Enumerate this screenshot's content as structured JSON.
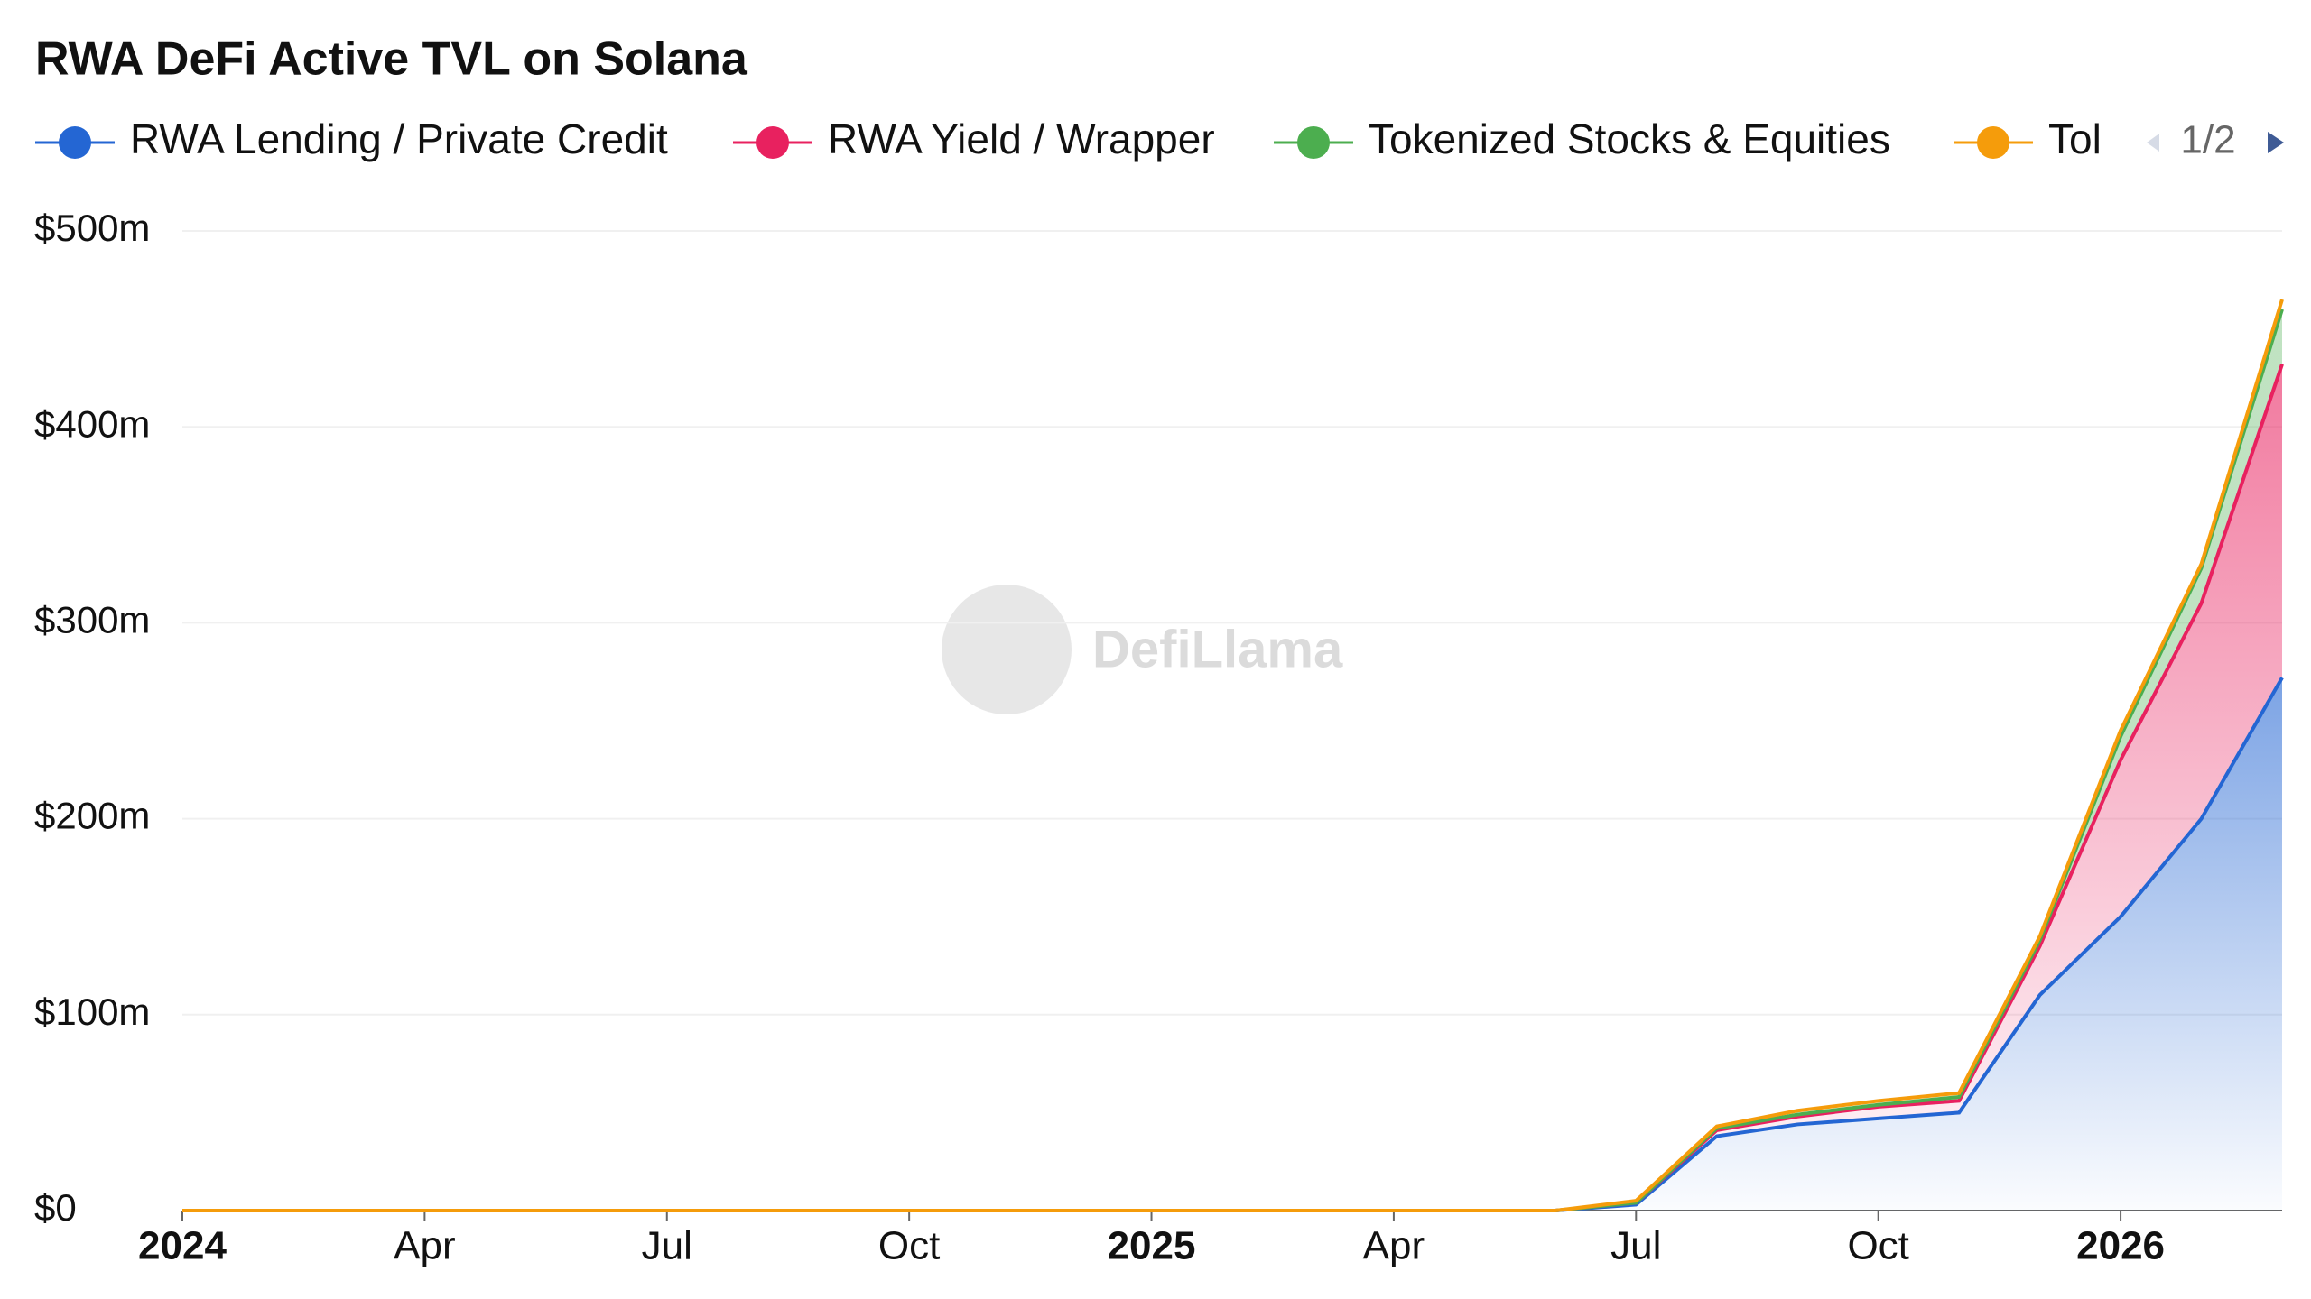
{
  "chart_data": {
    "type": "stacked-area",
    "title": "RWA DeFi Active TVL on Solana",
    "watermark": "DefiLlama",
    "legend_page": "1/2",
    "x": [
      "2024-01",
      "2024-02",
      "2024-03",
      "2024-04",
      "2024-05",
      "2024-06",
      "2024-07",
      "2024-08",
      "2024-09",
      "2024-10",
      "2024-11",
      "2024-12",
      "2025-01",
      "2025-02",
      "2025-03",
      "2025-04",
      "2025-05",
      "2025-06",
      "2025-07",
      "2025-08",
      "2025-09",
      "2025-10",
      "2025-11",
      "2025-12",
      "2026-01",
      "2026-02",
      "2026-03"
    ],
    "series": [
      {
        "name": "RWA Lending / Private Credit",
        "color": "#2466d3",
        "values": [
          0,
          0,
          0,
          0,
          0,
          0,
          0,
          0,
          0,
          0,
          0,
          0,
          0,
          0,
          0,
          0,
          0,
          0,
          3,
          38,
          44,
          47,
          50,
          110,
          150,
          200,
          272
        ]
      },
      {
        "name": "RWA Yield / Wrapper",
        "color": "#e8215f",
        "values": [
          0,
          0,
          0,
          0,
          0,
          0,
          0,
          0,
          0,
          0,
          0,
          0,
          0,
          0,
          0,
          0,
          0,
          0,
          1,
          3,
          4,
          6,
          6,
          25,
          80,
          110,
          160
        ]
      },
      {
        "name": "Tokenized Stocks & Equities",
        "color": "#4cae4f",
        "values": [
          0,
          0,
          0,
          0,
          0,
          0,
          0,
          0,
          0,
          0,
          0,
          0,
          0,
          0,
          0,
          0,
          0,
          0,
          0,
          1,
          1,
          1,
          2,
          3,
          12,
          18,
          28
        ]
      },
      {
        "name": "Tol",
        "color": "#f59c0b",
        "values": [
          0,
          0,
          0,
          0,
          0,
          0,
          0,
          0,
          0,
          0,
          0,
          0,
          0,
          0,
          0,
          0,
          0,
          0,
          1,
          1,
          2,
          2,
          2,
          2,
          3,
          2,
          5
        ]
      }
    ],
    "xlim": [
      "2024-01",
      "2026-03"
    ],
    "xticks": [
      {
        "value": "2024-01",
        "label": "2024"
      },
      {
        "value": "2024-04",
        "label": "Apr"
      },
      {
        "value": "2024-07",
        "label": "Jul"
      },
      {
        "value": "2024-10",
        "label": "Oct"
      },
      {
        "value": "2025-01",
        "label": "2025"
      },
      {
        "value": "2025-04",
        "label": "Apr"
      },
      {
        "value": "2025-07",
        "label": "Jul"
      },
      {
        "value": "2025-10",
        "label": "Oct"
      },
      {
        "value": "2026-01",
        "label": "2026"
      }
    ],
    "ylim": [
      0,
      500
    ],
    "yticks": [
      {
        "value": 0,
        "label": "$0"
      },
      {
        "value": 100,
        "label": "$100m"
      },
      {
        "value": 200,
        "label": "$200m"
      },
      {
        "value": 300,
        "label": "$300m"
      },
      {
        "value": 400,
        "label": "$400m"
      },
      {
        "value": 500,
        "label": "$500m"
      }
    ],
    "grid": true
  }
}
